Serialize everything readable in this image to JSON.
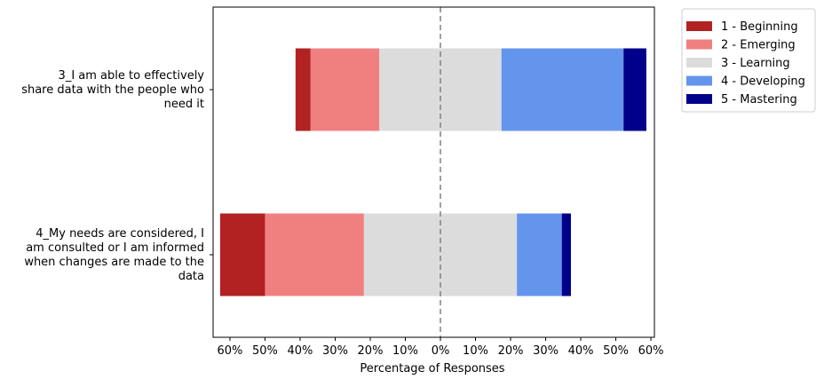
{
  "chart_data": {
    "type": "diverging_bar",
    "xlabel": "Percentage of Responses",
    "categories": [
      "3_I am able to effectively\nshare data with the people who\nneed it",
      "4_My needs are considered, I\nam consulted or I am informed\nwhen changes are made to the\ndata"
    ],
    "series": [
      {
        "name": "1 - Beginning",
        "color": "#b22222",
        "values": [
          4.3,
          12.8
        ]
      },
      {
        "name": "2 - Emerging",
        "color": "#f08080",
        "values": [
          19.6,
          28.2
        ]
      },
      {
        "name": "3 - Learning",
        "color": "#dcdcdc",
        "values": [
          34.8,
          43.6
        ]
      },
      {
        "name": "4 - Developing",
        "color": "#6495ed",
        "values": [
          34.8,
          12.8
        ]
      },
      {
        "name": "5 - Mastering",
        "color": "#00008b",
        "values": [
          6.5,
          2.6
        ]
      }
    ],
    "neutral_series": 2,
    "xlim": [
      -64.8,
      61.0
    ],
    "xticks": [
      {
        "value": -60,
        "label": "60%"
      },
      {
        "value": -50,
        "label": "50%"
      },
      {
        "value": -40,
        "label": "40%"
      },
      {
        "value": -30,
        "label": "30%"
      },
      {
        "value": -20,
        "label": "20%"
      },
      {
        "value": -10,
        "label": "10%"
      },
      {
        "value": 0,
        "label": "0%"
      },
      {
        "value": 10,
        "label": "10%"
      },
      {
        "value": 20,
        "label": "20%"
      },
      {
        "value": 30,
        "label": "30%"
      },
      {
        "value": 40,
        "label": "40%"
      },
      {
        "value": 50,
        "label": "50%"
      },
      {
        "value": 60,
        "label": "60%"
      }
    ],
    "legend": "outside-upper-right"
  }
}
